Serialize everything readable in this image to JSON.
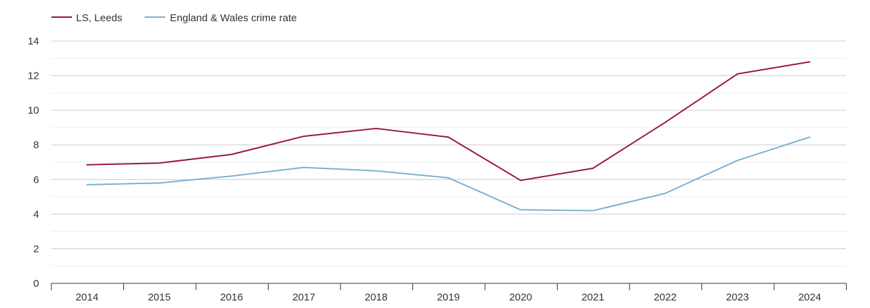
{
  "chart_data": {
    "type": "line",
    "title": "",
    "xlabel": "",
    "ylabel": "",
    "categories": [
      "2014",
      "2015",
      "2016",
      "2017",
      "2018",
      "2019",
      "2020",
      "2021",
      "2022",
      "2023",
      "2024"
    ],
    "series": [
      {
        "name": "LS, Leeds",
        "color": "#99163c",
        "values": [
          6.85,
          6.95,
          7.45,
          8.5,
          8.95,
          8.45,
          5.95,
          6.65,
          9.3,
          12.1,
          12.8
        ]
      },
      {
        "name": "England & Wales crime rate",
        "color": "#79b0d3",
        "values": [
          5.7,
          5.8,
          6.2,
          6.7,
          6.5,
          6.1,
          4.25,
          4.2,
          5.2,
          7.1,
          8.45
        ]
      }
    ],
    "ylim": [
      0,
      14
    ],
    "yticks": [
      0,
      2,
      4,
      6,
      8,
      10,
      12,
      14
    ],
    "grid": true,
    "legend_position": "top-left"
  }
}
